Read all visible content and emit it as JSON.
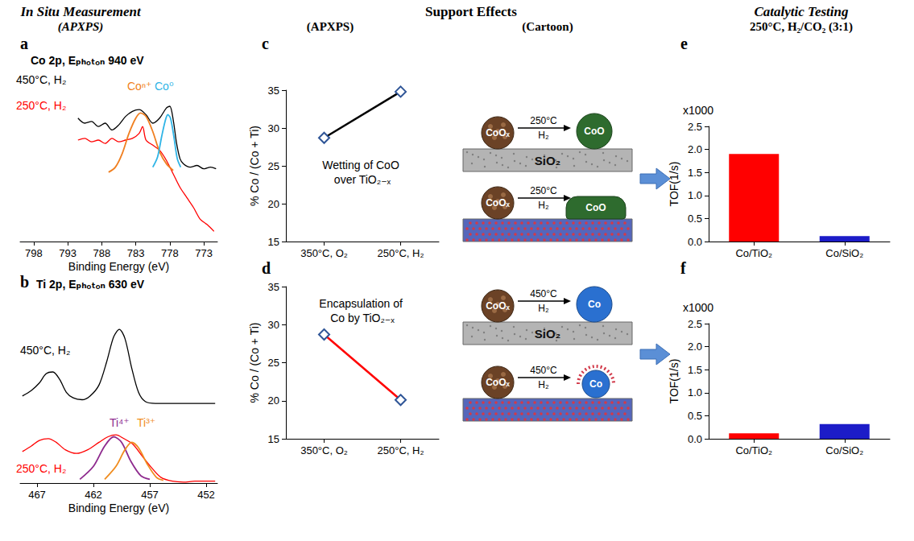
{
  "headers": {
    "measurement": [
      "In Situ Measurement",
      "(APXPS)"
    ],
    "support": "Support Effects",
    "support_columns": [
      "(APXPS)",
      "(Cartoon)"
    ],
    "testing": [
      "Catalytic Testing",
      "250°C, H₂/CO₂ (3:1)"
    ]
  },
  "chart_data": [
    {
      "panel": "a",
      "type": "line",
      "title": "Co 2p, Eₚₕₒₜₒₙ 940 eV",
      "x_label": "Binding Energy (eV)",
      "xlim": [
        800,
        771
      ],
      "xticks": [
        798,
        793,
        788,
        783,
        778,
        773
      ],
      "ylim": [
        0,
        10
      ],
      "yticks": [],
      "tick_labels": "x",
      "grid": false,
      "series": [
        {
          "name": "450°C, H₂",
          "color": "#000000",
          "x": [
            791.5,
            790.5,
            789.5,
            788.5,
            787.5,
            786.5,
            785.5,
            784.5,
            783.5,
            782.5,
            781.5,
            780.5,
            779.5,
            778.5,
            778,
            777.5,
            777,
            776.5,
            776,
            775,
            774,
            773,
            772,
            771.2
          ],
          "values": [
            7.3,
            7.0,
            7.1,
            6.8,
            7.0,
            6.6,
            6.9,
            7.4,
            7.7,
            7.8,
            7.5,
            7.0,
            7.3,
            7.9,
            8.0,
            7.2,
            5.8,
            4.9,
            4.6,
            4.4,
            4.5,
            4.3,
            4.4,
            4.3
          ]
        },
        {
          "name": "250°C, H₂",
          "color": "#ff0000",
          "x": [
            791.5,
            790.5,
            789.5,
            788.5,
            787.5,
            786.5,
            785.5,
            784.5,
            783.5,
            782.5,
            782,
            781.5,
            780.5,
            779.5,
            778.5,
            777.5,
            776.5,
            775.5,
            774.5,
            773.5,
            772.5,
            771.5
          ],
          "values": [
            6.0,
            6.1,
            5.9,
            6.0,
            5.8,
            6.1,
            5.9,
            6.0,
            6.1,
            6.4,
            6.8,
            6.0,
            5.7,
            5.4,
            4.8,
            4.0,
            3.2,
            2.6,
            2.0,
            1.3,
            1.0,
            0.6
          ]
        },
        {
          "name": "Coⁿ⁺",
          "color": "#f07f20",
          "x": [
            787,
            786,
            785,
            784,
            783,
            782.3,
            781.5,
            780.5,
            779.5,
            778.5,
            777.5
          ],
          "values": [
            4.1,
            4.4,
            5.2,
            6.4,
            7.3,
            7.6,
            7.4,
            6.5,
            5.3,
            4.6,
            4.2
          ]
        },
        {
          "name": "Co⁰",
          "color": "#2fb4e6",
          "x": [
            780.5,
            779.8,
            779.2,
            778.7,
            778.3,
            777.9,
            777.4,
            776.9,
            776.4
          ],
          "values": [
            4.4,
            5.0,
            6.2,
            7.1,
            7.5,
            7.3,
            6.2,
            4.9,
            4.4
          ]
        }
      ]
    },
    {
      "panel": "b",
      "type": "line",
      "title": "Ti 2p, Eₚₕₒₜₒₙ 630 eV",
      "x_label": "Binding Energy (eV)",
      "xlim": [
        468.5,
        451
      ],
      "xticks": [
        467,
        462,
        457,
        452
      ],
      "ylim": [
        0,
        10
      ],
      "yticks": [],
      "tick_labels": "x",
      "grid": false,
      "series": [
        {
          "name": "450°C, H₂",
          "color": "#000000",
          "x": [
            468.3,
            467.5,
            466.8,
            466.2,
            465.6,
            465,
            464.4,
            463.8,
            463,
            462.3,
            461.5,
            460.8,
            460.2,
            459.7,
            459.2,
            458.6,
            458,
            457.4,
            456.5,
            455,
            453.5,
            452,
            451.2
          ],
          "values": [
            4.7,
            5.0,
            5.4,
            5.9,
            6.0,
            5.6,
            4.9,
            4.6,
            4.5,
            4.7,
            5.3,
            6.6,
            7.9,
            8.3,
            7.8,
            6.2,
            4.9,
            4.4,
            4.3,
            4.3,
            4.3,
            4.3,
            4.3
          ]
        },
        {
          "name": "250°C, H₂",
          "color": "#ff0000",
          "x": [
            468.3,
            467.5,
            466.8,
            466,
            465.3,
            464.5,
            463.5,
            462.5,
            461.5,
            460.7,
            460,
            459.3,
            458.5,
            457.6,
            456.8,
            456,
            455,
            454,
            453,
            452,
            451.2
          ],
          "values": [
            1.7,
            2.0,
            2.3,
            2.4,
            2.2,
            1.8,
            1.6,
            1.8,
            2.2,
            2.5,
            2.6,
            2.4,
            2.1,
            1.4,
            0.8,
            0.3,
            0.1,
            0.05,
            0.1,
            0.1,
            0.1
          ]
        },
        {
          "name": "Ti⁴⁺",
          "color": "#8e2a8e",
          "x": [
            463.2,
            462,
            461,
            460.2,
            459.5,
            458.7,
            457.8,
            457
          ],
          "values": [
            0.2,
            0.9,
            2.0,
            2.5,
            2.2,
            1.2,
            0.4,
            0.2
          ]
        },
        {
          "name": "Ti³⁺",
          "color": "#f08c1e",
          "x": [
            461,
            460,
            459.2,
            458.6,
            458,
            457.2,
            456.4,
            455.8
          ],
          "values": [
            0.2,
            0.9,
            1.8,
            2.2,
            1.9,
            1.0,
            0.3,
            0.15
          ]
        }
      ]
    },
    {
      "panel": "c",
      "type": "line",
      "y_label": "% Co / (Co + Ti)",
      "annotation": "Wetting of CoO over TiO₂₋ₓ",
      "categories": [
        "350°C, O₂",
        "250°C, H₂"
      ],
      "values": [
        28.7,
        34.8
      ],
      "color": "#000000",
      "marker": "diamond",
      "ylim": [
        15,
        35
      ],
      "yticks": [
        15,
        20,
        25,
        30,
        35
      ],
      "grid": false
    },
    {
      "panel": "d",
      "type": "line",
      "y_label": "% Co / (Co + Ti)",
      "annotation": "Encapsulation of Co by TiO₂₋ₓ",
      "categories": [
        "350°C, O₂",
        "250°C, H₂"
      ],
      "values": [
        28.7,
        20.1
      ],
      "color": "#ff0000",
      "marker": "diamond",
      "ylim": [
        15,
        35
      ],
      "yticks": [
        15,
        20,
        25,
        30,
        35
      ],
      "grid": false
    },
    {
      "panel": "e",
      "type": "bar",
      "y_label": "TOF(1/s)",
      "y_multiplier": "x1000",
      "categories": [
        "Co/TiO₂",
        "Co/SiO₂"
      ],
      "values": [
        1.9,
        0.12
      ],
      "colors": [
        "#ff0000",
        "#1c1cc8"
      ],
      "ylim": [
        0,
        2.5
      ],
      "yticks": [
        {
          "value": 0,
          "label": "0.0"
        },
        0.5,
        {
          "value": 1,
          "label": "1.0"
        },
        1.5,
        {
          "value": 2,
          "label": "2.0"
        },
        2.5
      ],
      "grid": false
    },
    {
      "panel": "f",
      "type": "bar",
      "y_label": "TOF(1/s)",
      "y_multiplier": "x1000",
      "categories": [
        "Co/TiO₂",
        "Co/SiO₂"
      ],
      "values": [
        0.12,
        0.32
      ],
      "colors": [
        "#ff0000",
        "#1c1cc8"
      ],
      "ylim": [
        0,
        2.5
      ],
      "yticks": [
        {
          "value": 0,
          "label": "0.0"
        },
        0.5,
        {
          "value": 1,
          "label": "1.0"
        },
        1.5,
        {
          "value": 2,
          "label": "2.0"
        },
        2.5
      ],
      "grid": false
    }
  ],
  "cartoons": {
    "c": {
      "before": "CoOₓ",
      "temperature": "250°C",
      "gas": "H₂",
      "after": "CoO",
      "support": "SiO₂"
    },
    "d": {
      "before": "CoOₓ",
      "temperature": "450°C",
      "gas": "H₂",
      "after": "Co",
      "support": "SiO₂"
    }
  }
}
